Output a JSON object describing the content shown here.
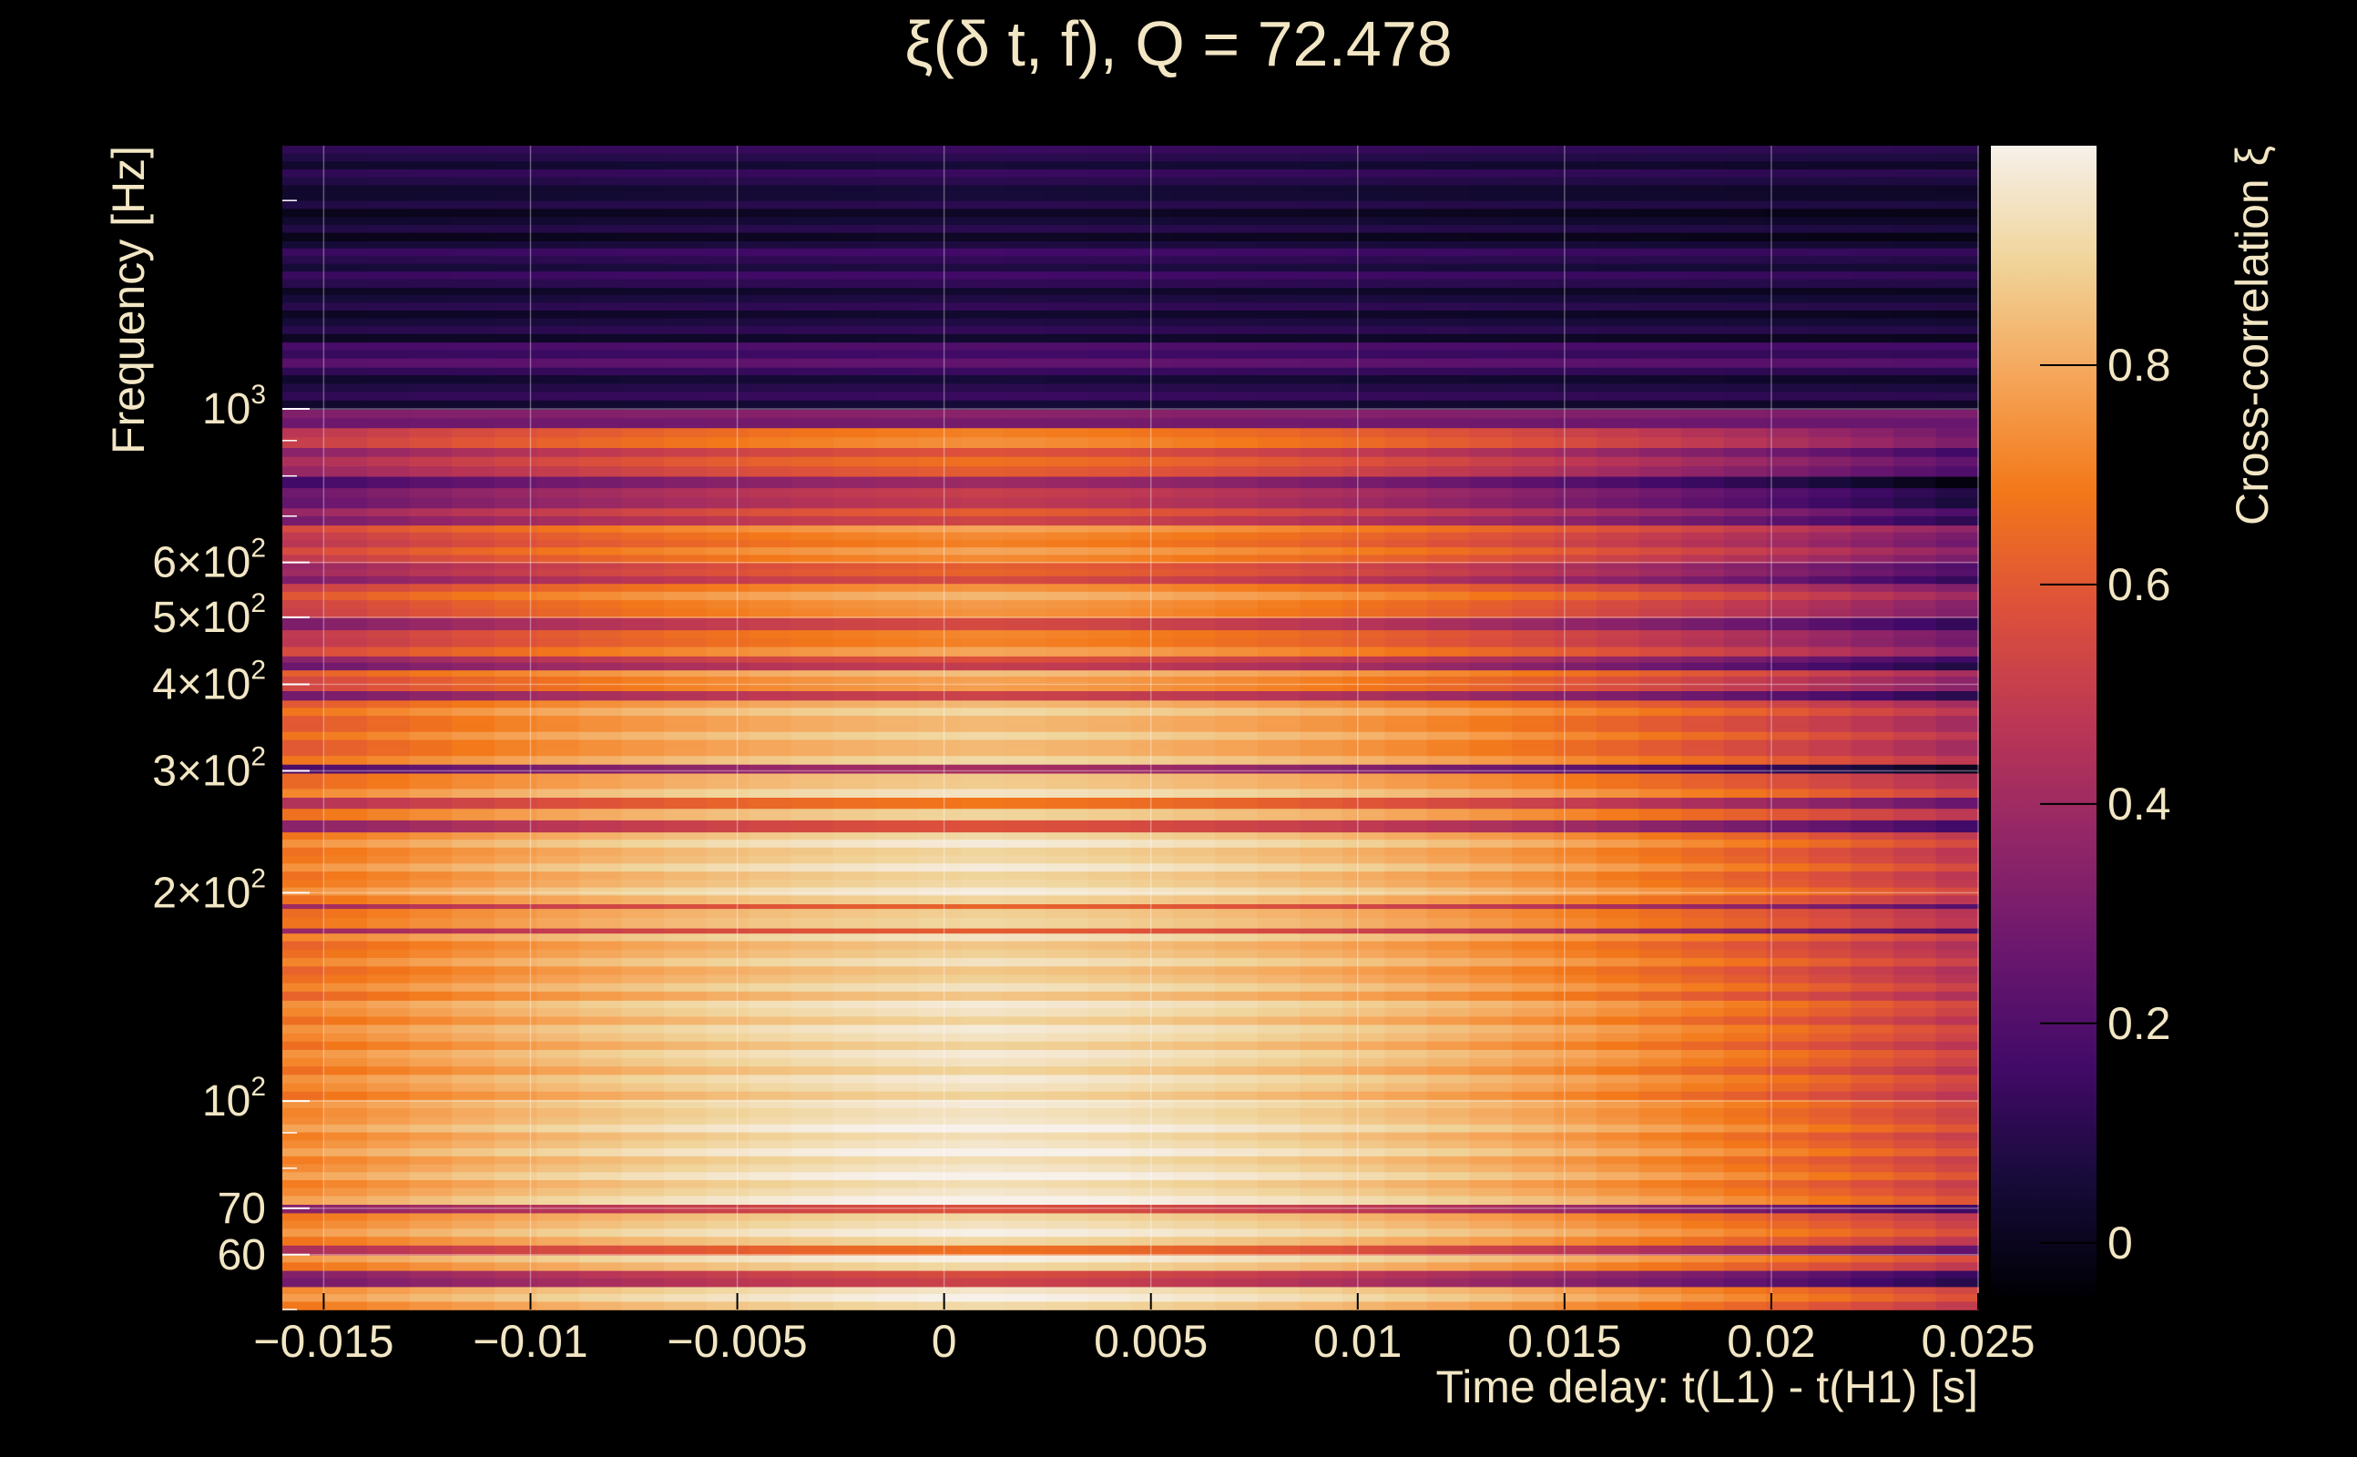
{
  "chart_data": {
    "type": "heatmap",
    "title": "ξ(δ t, f), Q = 72.478",
    "xlabel": "Time delay: t(L1) - t(H1) [s]",
    "ylabel": "Frequency [Hz]",
    "colorbar_label": "Cross-correlation ξ",
    "xlim": [
      -0.016,
      0.025
    ],
    "ylim": [
      50,
      2400
    ],
    "yscale": "log",
    "grid": true,
    "x_ticks": [
      {
        "value": -0.015,
        "label": "−0.015"
      },
      {
        "value": -0.01,
        "label": "−0.01"
      },
      {
        "value": -0.005,
        "label": "−0.005"
      },
      {
        "value": 0,
        "label": "0"
      },
      {
        "value": 0.005,
        "label": "0.005"
      },
      {
        "value": 0.01,
        "label": "0.01"
      },
      {
        "value": 0.015,
        "label": "0.015"
      },
      {
        "value": 0.02,
        "label": "0.02"
      },
      {
        "value": 0.025,
        "label": "0.025"
      }
    ],
    "y_ticks": [
      {
        "value": 60,
        "label": "60"
      },
      {
        "value": 70,
        "label": "70"
      },
      {
        "value": 100,
        "label": "10",
        "exp": "2"
      },
      {
        "value": 200,
        "label": "2×10",
        "exp": "2"
      },
      {
        "value": 300,
        "label": "3×10",
        "exp": "2"
      },
      {
        "value": 400,
        "label": "4×10",
        "exp": "2"
      },
      {
        "value": 500,
        "label": "5×10",
        "exp": "2"
      },
      {
        "value": 600,
        "label": "6×10",
        "exp": "2"
      },
      {
        "value": 1000,
        "label": "10",
        "exp": "3"
      }
    ],
    "colorbar": {
      "range": [
        -0.05,
        1.0
      ],
      "ticks": [
        {
          "value": 0,
          "label": "0"
        },
        {
          "value": 0.2,
          "label": "0.2"
        },
        {
          "value": 0.4,
          "label": "0.4"
        },
        {
          "value": 0.6,
          "label": "0.6"
        },
        {
          "value": 0.8,
          "label": "0.8"
        }
      ],
      "colormap": "inferno"
    },
    "peak": {
      "x": 0.001,
      "y": 150,
      "value": 0.99
    },
    "bands": [
      {
        "f_low": 50,
        "f_high": 54,
        "base": 0.96
      },
      {
        "f_low": 54,
        "f_high": 57,
        "base": 0.52
      },
      {
        "f_low": 57,
        "f_high": 60,
        "base": 0.95
      },
      {
        "f_low": 60,
        "f_high": 62,
        "base": 0.66
      },
      {
        "f_low": 62,
        "f_high": 69,
        "base": 0.95
      },
      {
        "f_low": 69,
        "f_high": 71,
        "base": 0.62
      },
      {
        "f_low": 71,
        "f_high": 95,
        "base": 0.97
      },
      {
        "f_low": 95,
        "f_high": 140,
        "base": 0.94
      },
      {
        "f_low": 140,
        "f_high": 175,
        "base": 0.9
      },
      {
        "f_low": 175,
        "f_high": 178,
        "base": 0.6
      },
      {
        "f_low": 178,
        "f_high": 190,
        "base": 0.92
      },
      {
        "f_low": 190,
        "f_high": 193,
        "base": 0.68
      },
      {
        "f_low": 193,
        "f_high": 245,
        "base": 0.93
      },
      {
        "f_low": 245,
        "f_high": 255,
        "base": 0.55
      },
      {
        "f_low": 255,
        "f_high": 265,
        "base": 0.85
      },
      {
        "f_low": 265,
        "f_high": 275,
        "base": 0.66
      },
      {
        "f_low": 275,
        "f_high": 298,
        "base": 0.9
      },
      {
        "f_low": 298,
        "f_high": 307,
        "base": 0.47
      },
      {
        "f_low": 307,
        "f_high": 380,
        "base": 0.86
      },
      {
        "f_low": 380,
        "f_high": 392,
        "base": 0.5
      },
      {
        "f_low": 392,
        "f_high": 420,
        "base": 0.8
      },
      {
        "f_low": 420,
        "f_high": 440,
        "base": 0.55
      },
      {
        "f_low": 440,
        "f_high": 480,
        "base": 0.74
      },
      {
        "f_low": 480,
        "f_high": 500,
        "base": 0.6
      },
      {
        "f_low": 500,
        "f_high": 560,
        "base": 0.78
      },
      {
        "f_low": 560,
        "f_high": 600,
        "base": 0.6
      },
      {
        "f_low": 600,
        "f_high": 680,
        "base": 0.74
      },
      {
        "f_low": 680,
        "f_high": 720,
        "base": 0.58
      },
      {
        "f_low": 720,
        "f_high": 770,
        "base": 0.52
      },
      {
        "f_low": 770,
        "f_high": 800,
        "base": 0.44
      },
      {
        "f_low": 800,
        "f_high": 880,
        "base": 0.62
      },
      {
        "f_low": 880,
        "f_high": 940,
        "base": 0.7
      },
      {
        "f_low": 940,
        "f_high": 1000,
        "base": 0.3
      },
      {
        "f_low": 1000,
        "f_high": 1150,
        "base": 0.1
      },
      {
        "f_low": 1150,
        "f_high": 1250,
        "base": 0.2
      },
      {
        "f_low": 1250,
        "f_high": 1500,
        "base": 0.08
      },
      {
        "f_low": 1500,
        "f_high": 1750,
        "base": 0.12
      },
      {
        "f_low": 1750,
        "f_high": 2050,
        "base": 0.06
      },
      {
        "f_low": 2050,
        "f_high": 2400,
        "base": 0.1
      }
    ]
  }
}
